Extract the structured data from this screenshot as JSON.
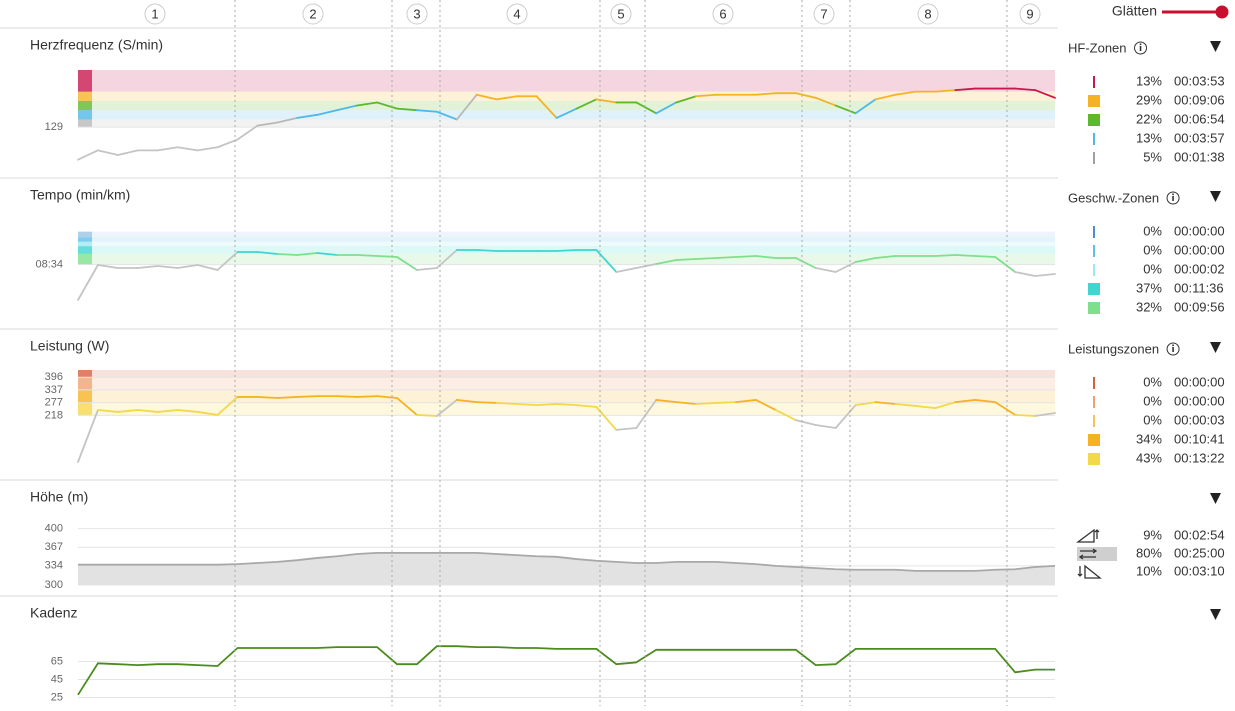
{
  "header": {
    "smoothing_label": "Glätten"
  },
  "laps": [
    "1",
    "2",
    "3",
    "4",
    "5",
    "6",
    "7",
    "8",
    "9"
  ],
  "chart_data": [
    {
      "type": "line",
      "title": "Herzfrequenz (S/min)",
      "color": "#c4c4c4",
      "ylim": [
        100,
        166
      ],
      "yticks": [
        129
      ],
      "bands": [
        {
          "from": 129,
          "to": 134,
          "color": "#b8b8b8"
        },
        {
          "from": 134,
          "to": 140,
          "color": "#4fb8e8"
        },
        {
          "from": 140,
          "to": 146,
          "color": "#5db82a"
        },
        {
          "from": 146,
          "to": 152,
          "color": "#f5b324"
        },
        {
          "from": 152,
          "to": 166,
          "color": "#c8174f"
        }
      ],
      "values": [
        108,
        114,
        111,
        114,
        114,
        116,
        114,
        116,
        121,
        130,
        132,
        135,
        137,
        140,
        143,
        145,
        141,
        140,
        139,
        134,
        150,
        147,
        149,
        149,
        135,
        141,
        147,
        145,
        145,
        138,
        145,
        149,
        150,
        150,
        150,
        151,
        151,
        148,
        143,
        138,
        147,
        150,
        152,
        152,
        153,
        154,
        154,
        154,
        153,
        148
      ],
      "zones": {
        "title": "HF-Zonen",
        "rows": [
          {
            "color": "#c8174f",
            "percent": "13%",
            "time": "00:03:53"
          },
          {
            "color": "#f5b324",
            "percent": "29%",
            "time": "00:09:06"
          },
          {
            "color": "#5db82a",
            "percent": "22%",
            "time": "00:06:54"
          },
          {
            "color": "#4fb8e8",
            "percent": "13%",
            "time": "00:03:57"
          },
          {
            "color": "#a0a0a0",
            "percent": "5%",
            "time": "00:01:38"
          }
        ]
      }
    },
    {
      "type": "line",
      "title": "Tempo (min/km)",
      "color": "#c4c4c4",
      "ylim": [
        14,
        5
      ],
      "yticks": [
        {
          "value": 8.57,
          "label": "08:34"
        }
      ],
      "bands": [
        {
          "from": 8.57,
          "to": 7.6,
          "color": "#7ee08c"
        },
        {
          "from": 7.6,
          "to": 6.9,
          "color": "#3dd6d0"
        },
        {
          "from": 6.9,
          "to": 6.5,
          "color": "#9ee8f0"
        },
        {
          "from": 6.5,
          "to": 6.1,
          "color": "#5bc0eb"
        },
        {
          "from": 6.1,
          "to": 5.6,
          "color": "#9cc3e6"
        }
      ],
      "values": [
        11.75,
        8.6,
        8.87,
        8.87,
        8.69,
        8.87,
        8.6,
        9.05,
        7.43,
        7.43,
        7.61,
        7.7,
        7.52,
        7.7,
        7.7,
        7.79,
        7.88,
        9.05,
        8.87,
        7.25,
        7.25,
        7.34,
        7.34,
        7.34,
        7.34,
        7.25,
        7.25,
        9.23,
        8.87,
        8.51,
        8.15,
        8.06,
        7.97,
        7.88,
        7.79,
        7.97,
        7.97,
        8.87,
        9.23,
        8.33,
        7.97,
        7.79,
        7.79,
        7.79,
        7.7,
        7.79,
        7.88,
        9.23,
        9.59,
        9.41
      ],
      "zones": {
        "title": "Geschw.-Zonen",
        "rows": [
          {
            "color": "#4a90d9",
            "percent": "0%",
            "time": "00:00:00"
          },
          {
            "color": "#5bc0eb",
            "percent": "0%",
            "time": "00:00:00"
          },
          {
            "color": "#9ee8f0",
            "percent": "0%",
            "time": "00:00:02"
          },
          {
            "color": "#3dd6d0",
            "percent": "37%",
            "time": "00:11:36"
          },
          {
            "color": "#7ee08c",
            "percent": "32%",
            "time": "00:09:56"
          }
        ]
      }
    },
    {
      "type": "line",
      "title": "Leistung (W)",
      "color": "#c4c4c4",
      "ylim": [
        0,
        430
      ],
      "yticks": [
        218,
        277,
        337,
        396
      ],
      "bands": [
        {
          "from": 218,
          "to": 277,
          "color": "#f3d84a"
        },
        {
          "from": 277,
          "to": 337,
          "color": "#f5b324"
        },
        {
          "from": 337,
          "to": 396,
          "color": "#f0a070"
        },
        {
          "from": 396,
          "to": 430,
          "color": "#d9603b"
        }
      ],
      "values": [
        0,
        243,
        234,
        243,
        234,
        243,
        234,
        220,
        304,
        304,
        299,
        304,
        308,
        308,
        304,
        308,
        299,
        220,
        215,
        290,
        280,
        276,
        271,
        266,
        271,
        266,
        257,
        150,
        159,
        290,
        280,
        271,
        276,
        280,
        290,
        243,
        196,
        173,
        159,
        266,
        280,
        271,
        262,
        252,
        280,
        290,
        280,
        220,
        215,
        229
      ],
      "zones": {
        "title": "Leistungszonen",
        "rows": [
          {
            "color": "#d9603b",
            "percent": "0%",
            "time": "00:00:00"
          },
          {
            "color": "#f0a070",
            "percent": "0%",
            "time": "00:00:00"
          },
          {
            "color": "#f5c060",
            "percent": "0%",
            "time": "00:00:03"
          },
          {
            "color": "#f5b324",
            "percent": "34%",
            "time": "00:10:41"
          },
          {
            "color": "#f3d84a",
            "percent": "43%",
            "time": "00:13:22"
          }
        ]
      }
    },
    {
      "type": "area",
      "title": "Höhe (m)",
      "color": "#a8a8a8",
      "ylim": [
        300,
        410
      ],
      "yticks": [
        300,
        334,
        367,
        400
      ],
      "values": [
        336,
        336,
        336,
        336,
        336,
        336,
        336,
        336,
        337,
        339,
        341,
        344,
        348,
        351,
        355,
        357,
        357,
        357,
        357,
        357,
        357,
        355,
        353,
        351,
        350,
        346,
        343,
        341,
        339,
        339,
        341,
        341,
        341,
        339,
        337,
        334,
        332,
        330,
        328,
        327,
        327,
        327,
        325,
        325,
        325,
        325,
        327,
        328,
        332,
        334
      ],
      "zones": {
        "rows": [
          {
            "percent": "9%",
            "time": "00:02:54"
          },
          {
            "percent": "80%",
            "time": "00:25:00"
          },
          {
            "percent": "10%",
            "time": "00:03:10"
          }
        ]
      }
    },
    {
      "type": "line",
      "title": "Kadenz",
      "color": "#4a8c1c",
      "ylim": [
        20,
        110
      ],
      "yticks": [
        25,
        45,
        65
      ],
      "values": [
        28,
        63,
        62,
        61,
        62,
        62,
        61,
        60,
        80,
        80,
        80,
        80,
        80,
        81,
        81,
        81,
        62,
        62,
        82,
        82,
        81,
        81,
        80,
        80,
        79,
        79,
        79,
        62,
        64,
        78,
        78,
        78,
        78,
        78,
        78,
        78,
        78,
        61,
        62,
        79,
        79,
        79,
        79,
        79,
        79,
        79,
        79,
        53,
        56,
        56
      ]
    }
  ]
}
